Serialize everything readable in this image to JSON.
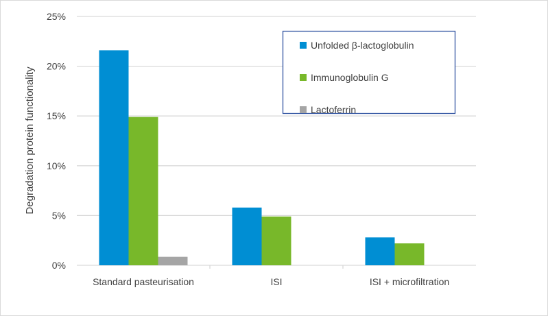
{
  "chart_data": {
    "type": "bar",
    "title": "",
    "xlabel": "",
    "ylabel": "Degradation protein functionality",
    "categories": [
      "Standard pasteurisation",
      "ISI",
      "ISI + microfiltration"
    ],
    "series": [
      {
        "name": "Unfolded β-lactoglobulin",
        "color": "#008ed3",
        "values": [
          21.6,
          5.8,
          2.8
        ]
      },
      {
        "name": "Immunoglobulin G",
        "color": "#78b82a",
        "values": [
          14.9,
          4.9,
          2.2
        ]
      },
      {
        "name": "Lactoferrin",
        "color": "#a5a5a5",
        "values": [
          0.85,
          null,
          null
        ]
      }
    ],
    "ylim": [
      0,
      25
    ],
    "yticks": [
      0,
      5,
      10,
      15,
      20,
      25
    ],
    "ytick_labels": [
      "0%",
      "5%",
      "10%",
      "15%",
      "20%",
      "25%"
    ],
    "grid": true,
    "legend_position": "top-right"
  }
}
